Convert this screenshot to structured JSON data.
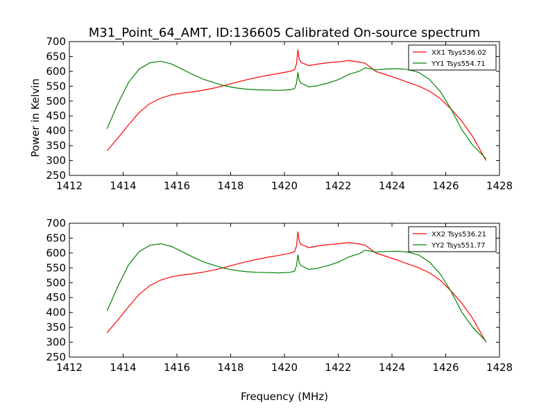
{
  "chart_data": [
    {
      "type": "line",
      "title": "M31_Point_64_AMT, ID:136605 Calibrated On-source spectrum",
      "xlabel": "",
      "ylabel": "Power in Kelvin",
      "xlim": [
        1412,
        1428
      ],
      "ylim": [
        250,
        700
      ],
      "xticks": [
        1412,
        1414,
        1416,
        1418,
        1420,
        1422,
        1424,
        1426,
        1428
      ],
      "yticks": [
        250,
        300,
        350,
        400,
        450,
        500,
        550,
        600,
        650,
        700
      ],
      "grid": false,
      "legend": "top-right",
      "series": [
        {
          "name": "XX1 Tsys536.02",
          "color": "#ff0000",
          "x": [
            1413.4,
            1413.8,
            1414.2,
            1414.6,
            1415.0,
            1415.4,
            1415.8,
            1416.2,
            1416.6,
            1417.0,
            1417.4,
            1417.8,
            1418.2,
            1418.6,
            1419.0,
            1419.4,
            1419.8,
            1420.2,
            1420.38,
            1420.45,
            1420.5,
            1420.55,
            1420.62,
            1420.75,
            1420.9,
            1421.2,
            1421.6,
            1422.0,
            1422.4,
            1422.8,
            1423.0,
            1423.4,
            1423.8,
            1424.2,
            1424.6,
            1425.0,
            1425.4,
            1425.8,
            1426.2,
            1426.6,
            1427.0,
            1427.5
          ],
          "y": [
            333,
            375,
            420,
            462,
            492,
            510,
            521,
            527,
            531,
            537,
            544,
            553,
            563,
            572,
            580,
            587,
            593,
            600,
            606,
            625,
            673,
            640,
            630,
            625,
            619,
            624,
            629,
            632,
            636,
            631,
            627,
            600,
            588,
            576,
            563,
            550,
            533,
            508,
            473,
            432,
            381,
            300
          ]
        },
        {
          "name": "YY1 Tsys554.71",
          "color": "#008000",
          "x": [
            1413.4,
            1413.8,
            1414.2,
            1414.6,
            1415.0,
            1415.4,
            1415.8,
            1416.2,
            1416.6,
            1417.0,
            1417.4,
            1417.8,
            1418.2,
            1418.6,
            1419.0,
            1419.4,
            1419.8,
            1420.2,
            1420.38,
            1420.45,
            1420.5,
            1420.55,
            1420.62,
            1420.75,
            1420.9,
            1421.2,
            1421.6,
            1422.0,
            1422.4,
            1422.8,
            1423.0,
            1423.4,
            1423.8,
            1424.2,
            1424.6,
            1425.0,
            1425.4,
            1425.8,
            1426.2,
            1426.6,
            1427.0,
            1427.5
          ],
          "y": [
            407,
            490,
            563,
            608,
            629,
            634,
            625,
            607,
            589,
            573,
            561,
            551,
            544,
            540,
            538,
            537,
            536,
            538,
            542,
            560,
            597,
            570,
            560,
            555,
            548,
            551,
            560,
            572,
            590,
            601,
            612,
            605,
            608,
            609,
            606,
            596,
            572,
            532,
            473,
            404,
            352,
            306
          ]
        }
      ]
    },
    {
      "type": "line",
      "title": "",
      "xlabel": "Frequency (MHz)",
      "ylabel": "",
      "xlim": [
        1412,
        1428
      ],
      "ylim": [
        250,
        700
      ],
      "xticks": [
        1412,
        1414,
        1416,
        1418,
        1420,
        1422,
        1424,
        1426,
        1428
      ],
      "yticks": [
        250,
        300,
        350,
        400,
        450,
        500,
        550,
        600,
        650,
        700
      ],
      "grid": false,
      "legend": "top-right",
      "series": [
        {
          "name": "XX2 Tsys536.21",
          "color": "#ff0000",
          "x": [
            1413.4,
            1413.8,
            1414.2,
            1414.6,
            1415.0,
            1415.4,
            1415.8,
            1416.2,
            1416.6,
            1417.0,
            1417.4,
            1417.8,
            1418.2,
            1418.6,
            1419.0,
            1419.4,
            1419.8,
            1420.2,
            1420.38,
            1420.45,
            1420.5,
            1420.55,
            1420.62,
            1420.75,
            1420.9,
            1421.2,
            1421.6,
            1422.0,
            1422.4,
            1422.8,
            1423.0,
            1423.4,
            1423.8,
            1424.2,
            1424.6,
            1425.0,
            1425.4,
            1425.8,
            1426.2,
            1426.6,
            1427.0,
            1427.5
          ],
          "y": [
            332,
            374,
            419,
            461,
            491,
            509,
            520,
            526,
            530,
            536,
            543,
            552,
            562,
            571,
            579,
            586,
            592,
            599,
            605,
            624,
            672,
            639,
            629,
            624,
            618,
            623,
            628,
            631,
            635,
            630,
            626,
            600,
            588,
            576,
            563,
            550,
            533,
            508,
            472,
            431,
            380,
            300
          ]
        },
        {
          "name": "YY2 Tsys551.77",
          "color": "#008000",
          "x": [
            1413.4,
            1413.8,
            1414.2,
            1414.6,
            1415.0,
            1415.4,
            1415.8,
            1416.2,
            1416.6,
            1417.0,
            1417.4,
            1417.8,
            1418.2,
            1418.6,
            1419.0,
            1419.4,
            1419.8,
            1420.2,
            1420.38,
            1420.45,
            1420.5,
            1420.55,
            1420.62,
            1420.75,
            1420.9,
            1421.2,
            1421.6,
            1422.0,
            1422.4,
            1422.8,
            1423.0,
            1423.4,
            1423.8,
            1424.2,
            1424.6,
            1425.0,
            1425.4,
            1425.8,
            1426.2,
            1426.6,
            1427.0,
            1427.5
          ],
          "y": [
            405,
            487,
            560,
            605,
            626,
            631,
            622,
            604,
            586,
            570,
            558,
            548,
            541,
            537,
            535,
            534,
            533,
            535,
            539,
            557,
            594,
            567,
            557,
            552,
            545,
            548,
            557,
            569,
            587,
            598,
            609,
            603,
            605,
            606,
            603,
            593,
            569,
            529,
            470,
            401,
            350,
            303
          ]
        }
      ]
    }
  ]
}
